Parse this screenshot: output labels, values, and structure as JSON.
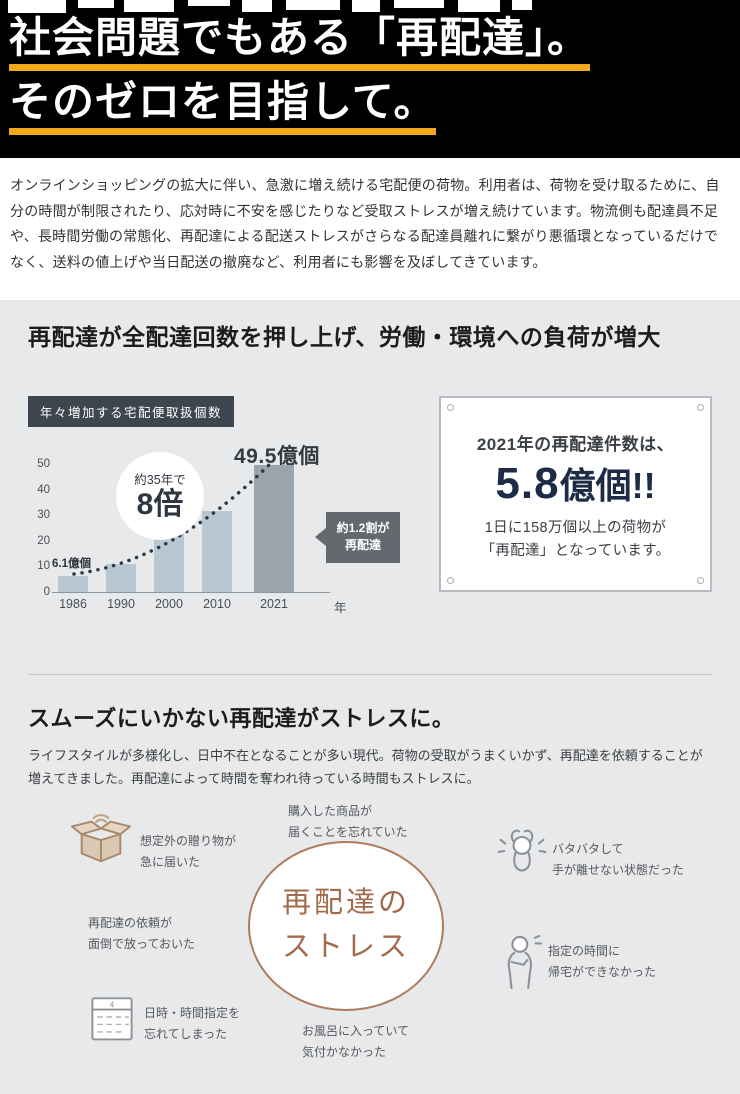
{
  "header": {
    "line1": "社会問題でもある「再配達」。",
    "line2": "そのゼロを目指して。",
    "accent_color": "#f2a91c"
  },
  "intro": {
    "paragraph": "オンラインショッピングの拡大に伴い、急激に増え続ける宅配便の荷物。利用者は、荷物を受け取るために、自分の時間が制限されたり、応対時に不安を感じたりなど受取ストレスが増え続けています。物流側も配達員不足や、長時間労働の常態化、再配達による配送ストレスがさらなる配達員離れに繋がり悪循環となっているだけでなく、送料の値上げや当日配送の撤廃など、利用者にも影響を及ぼしてきています。"
  },
  "section_load": {
    "heading": "再配達が全配達回数を押し上げ、労働・環境への負荷が増大",
    "infobox": {
      "intro": "2021年の再配達件数は、",
      "big_number": "5.8",
      "big_suffix": "億個!!",
      "detail_line1": "1日に158万個以上の荷物が",
      "detail_line2": "「再配達」となっています。"
    }
  },
  "chart_data": {
    "type": "bar",
    "title": "年々増加する宅配便取扱個数",
    "categories": [
      "1986",
      "1990",
      "2000",
      "2010",
      "2021"
    ],
    "values": [
      6.1,
      11,
      26,
      31.5,
      49.5
    ],
    "unit_label": "年",
    "ylabel": "",
    "xlabel": "",
    "ylim": [
      0,
      50
    ],
    "yticks": [
      0,
      10,
      20,
      30,
      40,
      50
    ],
    "grid": false,
    "bar_color": "#b9c7d0",
    "highlight_bar_color": "#9aa4aa",
    "annotations": {
      "first_value": "6.1億個",
      "peak_value": "49.5億個",
      "growth_badge_small": "約35年で",
      "growth_badge_big": "8倍",
      "redelivery_arrow_line1": "約1.2割が",
      "redelivery_arrow_line2": "再配達"
    }
  },
  "section_stress": {
    "heading": "スムーズにいかない再配達がストレスに。",
    "paragraph": "ライフスタイルが多様化し、日中不在となることが多い現代。荷物の受取がうまくいかず、再配達を依頼することが増えてきました。再配達によって時間を奪われ待っている時間もストレスに。",
    "center_line1": "再配達の",
    "center_line2": "ストレス",
    "items": [
      {
        "icon": "gift-box-icon",
        "line1": "想定外の贈り物が",
        "line2": "急に届いた"
      },
      {
        "icon": "",
        "line1": "購入した商品が",
        "line2": "届くことを忘れていた"
      },
      {
        "icon": "stressed-person-icon",
        "line1": "バタバタして",
        "line2": "手が離せない状態だった"
      },
      {
        "icon": "",
        "line1": "再配達の依頼が",
        "line2": "面倒で放っておいた"
      },
      {
        "icon": "calendar-icon",
        "line1": "日時・時間指定を",
        "line2": "忘れてしまった"
      },
      {
        "icon": "",
        "line1": "お風呂に入っていて",
        "line2": "気付かなかった"
      },
      {
        "icon": "waiting-person-icon",
        "line1": "指定の時間に",
        "line2": "帰宅ができなかった"
      }
    ]
  }
}
